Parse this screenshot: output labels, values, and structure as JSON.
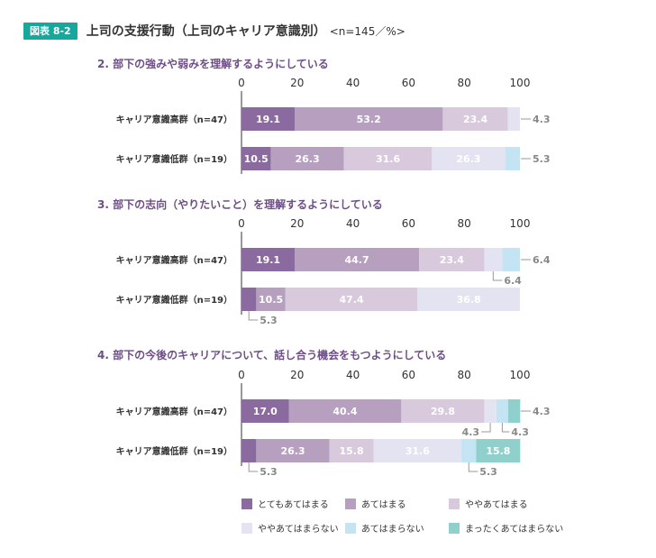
{
  "figure": {
    "badge": "図表 8-2",
    "title": "上司の支援行動（上司のキャリア意識別）",
    "note": "<n=145／%>"
  },
  "colors": {
    "c1": "#8a6a9f",
    "c2": "#b79fc0",
    "c3": "#d8c9dd",
    "c4": "#e3e3f2",
    "c5": "#c4e4f4",
    "c6": "#8fd0cc"
  },
  "chart_data": {
    "type": "bar",
    "stacked": true,
    "orientation": "horizontal",
    "xlim": [
      0,
      100
    ],
    "xticks": [
      "0",
      "20",
      "40",
      "60",
      "80",
      "100"
    ],
    "categories_legend": [
      "とてもあてはまる",
      "あてはまる",
      "ややあてはまる",
      "ややあてはまらない",
      "あてはまらない",
      "まったくあてはまらない"
    ],
    "panels": [
      {
        "title": "2. 部下の強みや弱みを理解するようにしている",
        "rows": [
          {
            "label": "キャリア意識高群（n=47）",
            "values": [
              19.1,
              53.2,
              23.4,
              4.3,
              0,
              0
            ],
            "labels": [
              "19.1",
              "53.2",
              "23.4",
              "4.3",
              "",
              ""
            ]
          },
          {
            "label": "キャリア意識低群（n=19）",
            "values": [
              10.5,
              26.3,
              31.6,
              26.3,
              5.3,
              0
            ],
            "labels": [
              "10.5",
              "26.3",
              "31.6",
              "26.3",
              "5.3",
              ""
            ]
          }
        ]
      },
      {
        "title": "3. 部下の志向（やりたいこと）を理解するようにしている",
        "rows": [
          {
            "label": "キャリア意識高群（n=47）",
            "values": [
              19.1,
              44.7,
              23.4,
              6.4,
              6.4,
              0
            ],
            "labels": [
              "19.1",
              "44.7",
              "23.4",
              "6.4",
              "6.4",
              ""
            ]
          },
          {
            "label": "キャリア意識低群（n=19）",
            "values": [
              5.3,
              10.5,
              47.4,
              36.8,
              0,
              0
            ],
            "labels": [
              "5.3",
              "10.5",
              "47.4",
              "36.8",
              "",
              ""
            ]
          }
        ]
      },
      {
        "title": "4. 部下の今後のキャリアについて、話し合う機会をもつようにしている",
        "rows": [
          {
            "label": "キャリア意識高群（n=47）",
            "values": [
              17.0,
              40.4,
              29.8,
              4.3,
              4.3,
              4.3
            ],
            "labels": [
              "17.0",
              "40.4",
              "29.8",
              "4.3",
              "4.3",
              "4.3"
            ]
          },
          {
            "label": "キャリア意識低群（n=19）",
            "values": [
              5.3,
              26.3,
              15.8,
              31.6,
              5.3,
              15.8
            ],
            "labels": [
              "5.3",
              "26.3",
              "15.8",
              "31.6",
              "5.3",
              "15.8"
            ]
          }
        ]
      }
    ]
  }
}
